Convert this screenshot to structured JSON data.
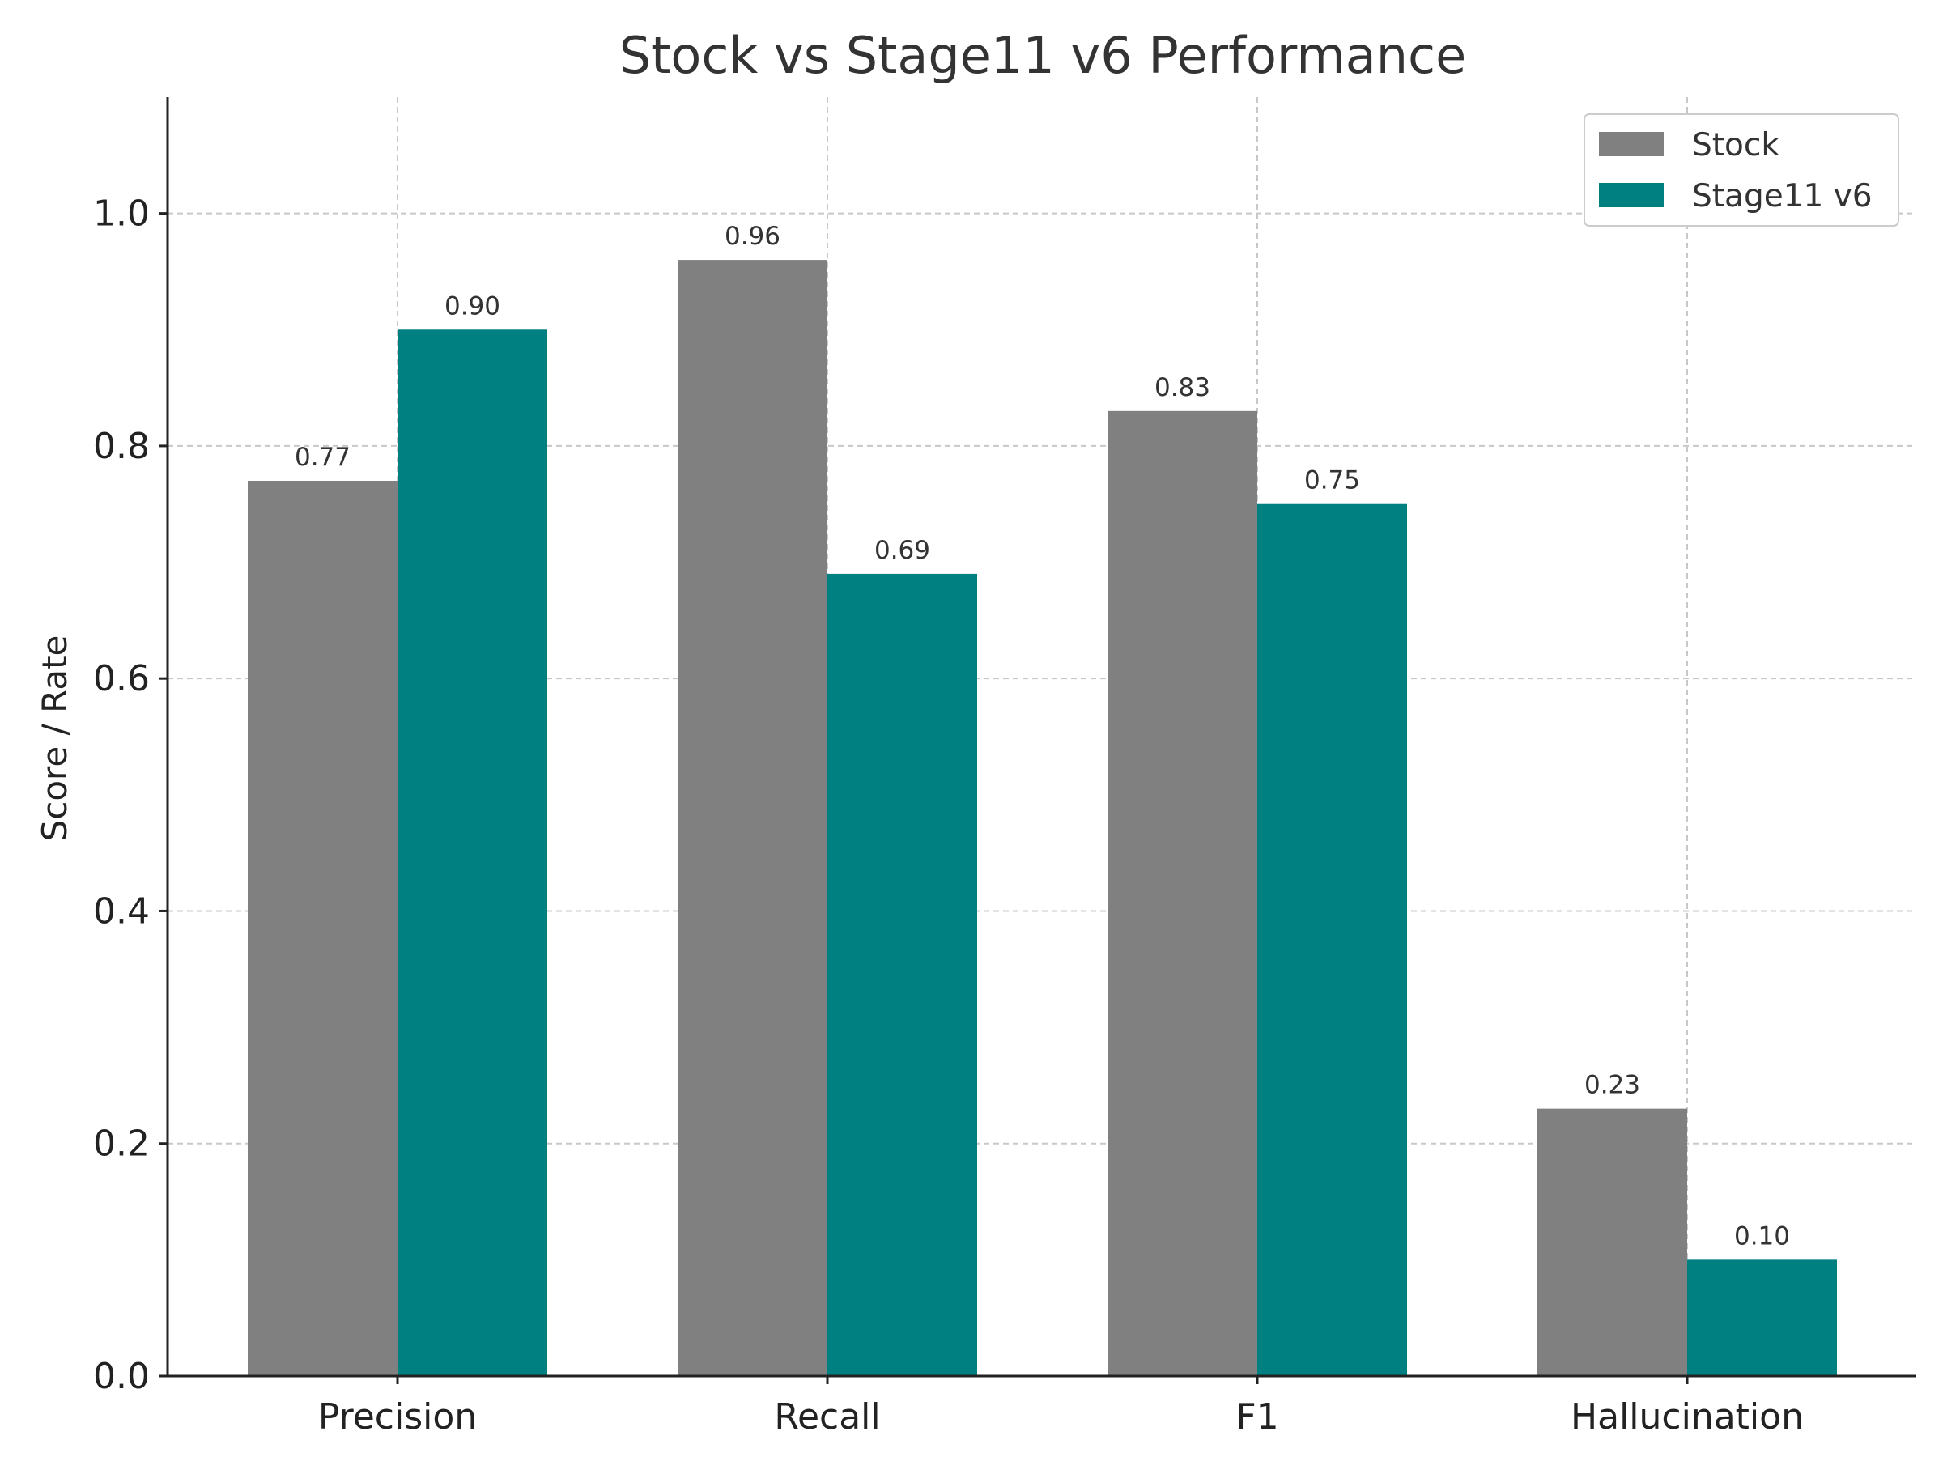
{
  "chart_data": {
    "type": "bar",
    "title": "Stock vs Stage11 v6 Performance",
    "xlabel": "",
    "ylabel": "Score / Rate",
    "categories": [
      "Precision",
      "Recall",
      "F1",
      "Hallucination"
    ],
    "series": [
      {
        "name": "Stock",
        "color": "#808080",
        "values": [
          0.77,
          0.96,
          0.83,
          0.23
        ],
        "labels": [
          "0.77",
          "0.96",
          "0.83",
          "0.23"
        ]
      },
      {
        "name": "Stage11 v6",
        "color": "#008080",
        "values": [
          0.9,
          0.69,
          0.75,
          0.1
        ],
        "labels": [
          "0.90",
          "0.69",
          "0.75",
          "0.10"
        ]
      }
    ],
    "ylim": [
      0,
      1.1
    ],
    "yticks": [
      0.0,
      0.2,
      0.4,
      0.6,
      0.8,
      1.0
    ],
    "ytick_labels": [
      "0.0",
      "0.2",
      "0.4",
      "0.6",
      "0.8",
      "1.0"
    ],
    "grid": true,
    "legend_position": "top-right"
  }
}
